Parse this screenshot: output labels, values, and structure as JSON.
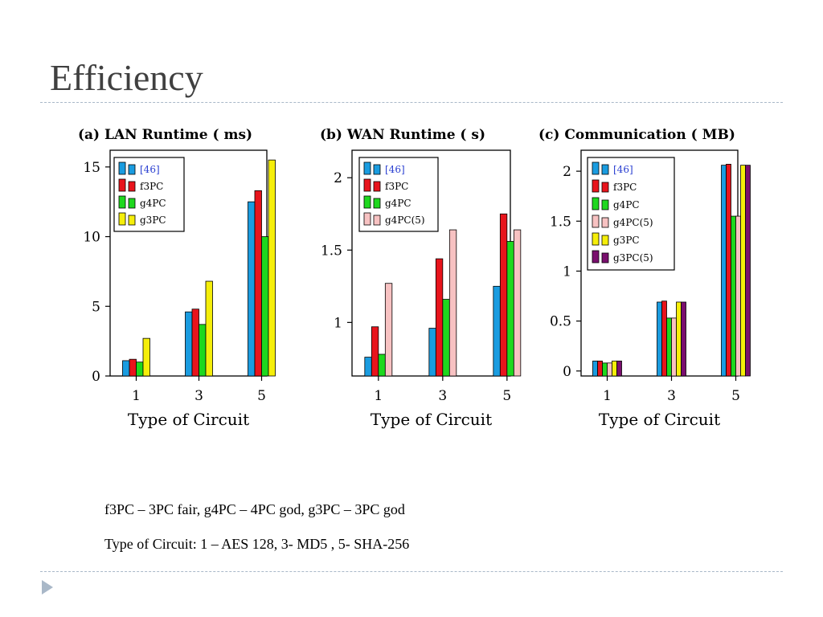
{
  "slide": {
    "title": "Efficiency",
    "notes": [
      "f3PC – 3PC fair,  g4PC – 4PC god,  g3PC – 3PC god",
      "Type of Circuit: 1 – AES 128, 3- MD5 , 5- SHA-256"
    ]
  },
  "colors": {
    "[46]": "#1a9ce0",
    "f3PC": "#e8141c",
    "g4PC": "#1ed81e",
    "g4PC(5)": "#f7c2c2",
    "g3PC": "#f5ee0a",
    "g3PC(5)": "#7a0f6e"
  },
  "chart_data": [
    {
      "type": "bar",
      "title": "(a) LAN Runtime ( ms)",
      "xlabel": "Type of Circuit",
      "ylabel": "",
      "categories": [
        "1",
        "3",
        "5"
      ],
      "ylim": [
        0,
        16.2
      ],
      "yticks": [
        0,
        5,
        10,
        15
      ],
      "ytick_labels": [
        "0",
        "5",
        "10",
        "15"
      ],
      "grid": false,
      "legend_position": "top-left",
      "series": [
        {
          "name": "[46]",
          "values": [
            1.1,
            4.6,
            12.5
          ]
        },
        {
          "name": "f3PC",
          "values": [
            1.2,
            4.8,
            13.3
          ]
        },
        {
          "name": "g4PC",
          "values": [
            1.0,
            3.7,
            10.0
          ]
        },
        {
          "name": "g3PC",
          "values": [
            2.7,
            6.8,
            15.5
          ]
        }
      ]
    },
    {
      "type": "bar",
      "title": "(b) WAN Runtime ( s)",
      "xlabel": "Type of Circuit",
      "ylabel": "",
      "categories": [
        "1",
        "3",
        "5"
      ],
      "ylim": [
        0.63,
        2.19
      ],
      "yticks": [
        1,
        1.5,
        2
      ],
      "ytick_labels": [
        "1",
        "1.5",
        "2"
      ],
      "grid": false,
      "legend_position": "top-left",
      "series": [
        {
          "name": "[46]",
          "values": [
            0.76,
            0.96,
            1.25
          ]
        },
        {
          "name": "f3PC",
          "values": [
            0.97,
            1.44,
            1.75
          ]
        },
        {
          "name": "g4PC",
          "values": [
            0.78,
            1.16,
            1.56
          ]
        },
        {
          "name": "g4PC(5)",
          "values": [
            1.27,
            1.64,
            1.64
          ]
        }
      ]
    },
    {
      "type": "bar",
      "title": "(c) Communication ( MB)",
      "xlabel": "Type of Circuit",
      "ylabel": "",
      "categories": [
        "1",
        "3",
        "5"
      ],
      "ylim": [
        -0.05,
        2.21
      ],
      "yticks": [
        0,
        0.5,
        1,
        1.5,
        2
      ],
      "ytick_labels": [
        "0",
        "0.5",
        "1",
        "1.5",
        "2"
      ],
      "grid": false,
      "legend_position": "top-right",
      "series": [
        {
          "name": "[46]",
          "values": [
            0.1,
            0.69,
            2.06
          ]
        },
        {
          "name": "f3PC",
          "values": [
            0.1,
            0.7,
            2.07
          ]
        },
        {
          "name": "g4PC",
          "values": [
            0.08,
            0.53,
            1.55
          ]
        },
        {
          "name": "g4PC(5)",
          "values": [
            0.08,
            0.53,
            1.55
          ]
        },
        {
          "name": "g3PC",
          "values": [
            0.1,
            0.69,
            2.06
          ]
        },
        {
          "name": "g3PC(5)",
          "values": [
            0.1,
            0.69,
            2.06
          ]
        }
      ]
    }
  ]
}
